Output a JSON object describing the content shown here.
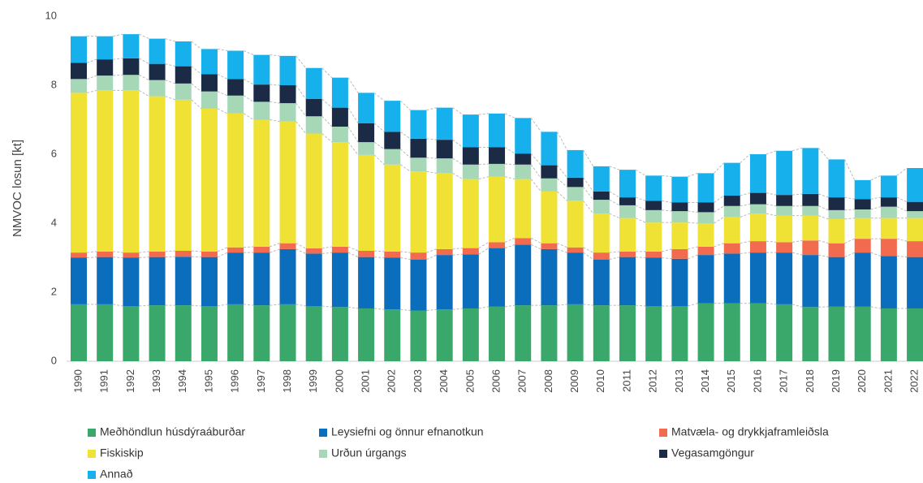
{
  "chart_data": {
    "type": "stacked_bar",
    "ylabel": "NMVOC losun [kt]",
    "categories": [
      "1990",
      "1991",
      "1992",
      "1993",
      "1994",
      "1995",
      "1996",
      "1997",
      "1998",
      "1999",
      "2000",
      "2001",
      "2002",
      "2003",
      "2004",
      "2005",
      "2006",
      "2007",
      "2008",
      "2009",
      "2010",
      "2011",
      "2012",
      "2013",
      "2014",
      "2015",
      "2016",
      "2017",
      "2018",
      "2019",
      "2020",
      "2021",
      "2022"
    ],
    "ylim": [
      0,
      10
    ],
    "yticks": [
      0,
      2,
      4,
      6,
      8,
      10
    ],
    "grid": false,
    "legend": "bottom",
    "series": [
      {
        "name": "Meðhöndlun húsdýraáburðar",
        "color": "#3aa86b",
        "values": [
          1.65,
          1.65,
          1.6,
          1.62,
          1.62,
          1.6,
          1.65,
          1.62,
          1.65,
          1.6,
          1.57,
          1.53,
          1.5,
          1.47,
          1.5,
          1.53,
          1.58,
          1.62,
          1.62,
          1.65,
          1.62,
          1.62,
          1.6,
          1.6,
          1.68,
          1.68,
          1.68,
          1.65,
          1.57,
          1.58,
          1.58,
          1.53,
          1.53
        ]
      },
      {
        "name": "Leysiefni og önnur efnanotkun",
        "color": "#0a6ebd",
        "values": [
          1.35,
          1.37,
          1.4,
          1.4,
          1.41,
          1.42,
          1.5,
          1.53,
          1.6,
          1.52,
          1.58,
          1.49,
          1.5,
          1.48,
          1.58,
          1.57,
          1.7,
          1.76,
          1.63,
          1.5,
          1.33,
          1.4,
          1.4,
          1.37,
          1.4,
          1.44,
          1.47,
          1.5,
          1.51,
          1.44,
          1.57,
          1.52,
          1.49
        ]
      },
      {
        "name": "Matvæla- og drykkjaframleiðsla",
        "color": "#f26b4f",
        "values": [
          0.15,
          0.16,
          0.15,
          0.16,
          0.17,
          0.16,
          0.15,
          0.17,
          0.17,
          0.15,
          0.17,
          0.18,
          0.18,
          0.2,
          0.17,
          0.18,
          0.17,
          0.19,
          0.17,
          0.15,
          0.2,
          0.16,
          0.18,
          0.28,
          0.24,
          0.3,
          0.33,
          0.3,
          0.42,
          0.4,
          0.4,
          0.5,
          0.46
        ]
      },
      {
        "name": "Fiskiskip",
        "color": "#f0e234",
        "values": [
          4.63,
          4.67,
          4.7,
          4.5,
          4.38,
          4.14,
          3.88,
          3.68,
          3.53,
          3.33,
          3.03,
          2.78,
          2.52,
          2.35,
          2.2,
          2.0,
          1.9,
          1.71,
          1.5,
          1.35,
          1.13,
          0.97,
          0.84,
          0.77,
          0.68,
          0.76,
          0.8,
          0.77,
          0.72,
          0.7,
          0.6,
          0.6,
          0.67
        ]
      },
      {
        "name": "Urðun úrgangs",
        "color": "#a6d8b8",
        "values": [
          0.4,
          0.43,
          0.45,
          0.47,
          0.47,
          0.5,
          0.52,
          0.52,
          0.53,
          0.5,
          0.45,
          0.37,
          0.45,
          0.4,
          0.43,
          0.42,
          0.37,
          0.42,
          0.38,
          0.4,
          0.4,
          0.37,
          0.36,
          0.33,
          0.32,
          0.32,
          0.27,
          0.28,
          0.28,
          0.26,
          0.25,
          0.33,
          0.2
        ]
      },
      {
        "name": "Vegasamgöngur",
        "color": "#1c2b45",
        "values": [
          0.47,
          0.47,
          0.48,
          0.47,
          0.5,
          0.5,
          0.48,
          0.5,
          0.52,
          0.5,
          0.55,
          0.55,
          0.5,
          0.55,
          0.54,
          0.5,
          0.48,
          0.32,
          0.38,
          0.27,
          0.24,
          0.23,
          0.27,
          0.25,
          0.28,
          0.3,
          0.33,
          0.32,
          0.35,
          0.37,
          0.3,
          0.27,
          0.27
        ]
      },
      {
        "name": "Annað",
        "color": "#16b0ec",
        "values": [
          0.77,
          0.67,
          0.7,
          0.73,
          0.72,
          0.73,
          0.82,
          0.86,
          0.85,
          0.9,
          0.87,
          0.88,
          0.9,
          0.83,
          0.93,
          0.95,
          0.98,
          1.03,
          0.97,
          0.8,
          0.73,
          0.8,
          0.73,
          0.75,
          0.85,
          0.95,
          1.12,
          1.28,
          1.33,
          1.1,
          0.55,
          0.63,
          0.98
        ]
      }
    ]
  }
}
